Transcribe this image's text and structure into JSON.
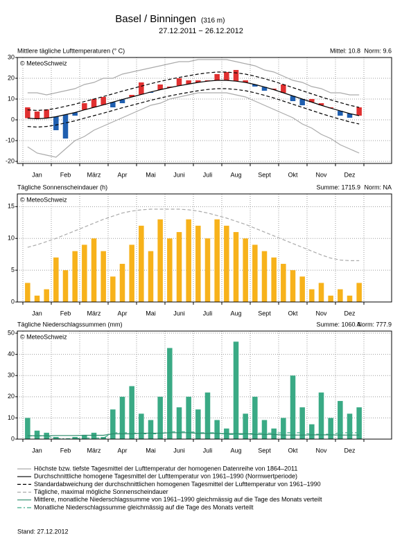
{
  "page": {
    "title": "Basel / Binningen",
    "elevation": "(316 m)",
    "period": "27.12.2011  − 26.12.2012",
    "stand": "Stand: 27.12.2012"
  },
  "chart_data": [
    {
      "type": "bar",
      "title": "Mittlere tägliche Lufttemperaturen (° C)",
      "stats": [
        "Mittel: 10.8",
        "Norm: 9.6"
      ],
      "source": "© MeteoSchweiz",
      "categories": [
        null,
        "Jan",
        null,
        null,
        "Feb",
        null,
        null,
        "März",
        null,
        null,
        "Apr",
        null,
        null,
        "Mai",
        null,
        null,
        "Juni",
        null,
        null,
        "Juli",
        null,
        null,
        "Aug",
        null,
        null,
        "Sept",
        null,
        null,
        "Okt",
        null,
        null,
        "Nov",
        null,
        null,
        "Dez",
        null
      ],
      "ylim": [
        -21,
        30
      ],
      "yticks": [
        -20,
        -10,
        0,
        10,
        20,
        30
      ],
      "grid": true,
      "series": [
        {
          "style": "anomaly",
          "base": 1,
          "color": "#e03030",
          "color_below": "#1f5fb0",
          "values": [
            6,
            4,
            5,
            -5,
            -9,
            2,
            8,
            10,
            11,
            6,
            8,
            12,
            18,
            13,
            17,
            16,
            20,
            19,
            19,
            19,
            22,
            23,
            24,
            19,
            16,
            14,
            15,
            17,
            9,
            7,
            10,
            8,
            6,
            2,
            1,
            6
          ]
        },
        {
          "name": "Durchschnittliche homogene Tagesmittel der Lufttemperatur von 1961–1990 (Normwertperiode)",
          "style": "solid",
          "color": "#000000",
          "values": [
            0.8,
            0.5,
            0.8,
            1.5,
            2.5,
            3.5,
            4.8,
            6,
            7.2,
            8.5,
            9.8,
            11,
            12.2,
            13.4,
            14.5,
            15.5,
            16.4,
            17.2,
            18,
            18.6,
            19,
            19,
            18.6,
            18,
            17,
            15.8,
            14.5,
            13,
            11.5,
            10,
            8.5,
            7,
            5.6,
            4.3,
            3,
            2
          ]
        },
        {
          "name": "Standardabweichung der durchschnittlichen homogenen Tagesmittel der Lufttemperatur von 1961–1990",
          "style": "dashed",
          "color": "#000000",
          "values": [
            4.8,
            4.5,
            4.8,
            5.5,
            6.5,
            7.5,
            8.8,
            10,
            11.2,
            12.5,
            13.8,
            15,
            16.2,
            17.4,
            18.5,
            19.5,
            20.4,
            21.2,
            22,
            22.6,
            23,
            23,
            22.6,
            22,
            21,
            19.8,
            18.5,
            17,
            15.5,
            14,
            12.5,
            11,
            9.6,
            8.3,
            7,
            6
          ],
          "low_values": [
            -3.2,
            -3.5,
            -3.2,
            -2.5,
            -1.5,
            -0.5,
            0.8,
            2,
            3.2,
            4.5,
            5.8,
            7,
            8.2,
            9.4,
            10.5,
            11.5,
            12.4,
            13.2,
            14,
            14.6,
            15,
            15,
            14.6,
            14,
            13,
            11.8,
            10.5,
            9,
            7.5,
            6,
            4.5,
            3,
            1.6,
            0.3,
            -1,
            -2
          ]
        },
        {
          "name": "Höchste bzw. tiefste Tagesmittel der Lufttemperatur der homogenen Datenreihe von 1864–2011",
          "style": "solid",
          "color": "#aaaaaa",
          "values": [
            13,
            13,
            12,
            13,
            14,
            15,
            17,
            18,
            20,
            20,
            22,
            23,
            24,
            25,
            26,
            27,
            28,
            28,
            29,
            29,
            29,
            29,
            28,
            27,
            26,
            24,
            23,
            21,
            19,
            18,
            16,
            15,
            13,
            13,
            12,
            12
          ],
          "low_values": [
            -13,
            -16,
            -17,
            -18,
            -14,
            -10,
            -8,
            -5,
            -3,
            -1,
            1,
            3,
            5,
            7,
            8,
            10,
            11,
            12,
            13,
            13,
            13,
            13,
            12,
            11,
            9,
            7,
            5,
            3,
            1,
            -2,
            -4,
            -7,
            -9,
            -12,
            -14,
            -16
          ]
        }
      ]
    },
    {
      "type": "bar",
      "title": "Tägliche Sonnenscheindauer (h)",
      "stats": [
        "Summe: 1715.9",
        "Norm: NA"
      ],
      "source": "© MeteoSchweiz",
      "categories": [
        null,
        "Jan",
        null,
        null,
        "Feb",
        null,
        null,
        "März",
        null,
        null,
        "Apr",
        null,
        null,
        "Mai",
        null,
        null,
        "Juni",
        null,
        null,
        "Juli",
        null,
        null,
        "Aug",
        null,
        null,
        "Sept",
        null,
        null,
        "Okt",
        null,
        null,
        "Nov",
        null,
        null,
        "Dez",
        null
      ],
      "ylim": [
        0,
        17
      ],
      "yticks": [
        0,
        5,
        10,
        15
      ],
      "grid": true,
      "series": [
        {
          "style": "bars",
          "color": "#f7b21b",
          "values": [
            3,
            1,
            2,
            7,
            5,
            8,
            9,
            10,
            8,
            4,
            6,
            9,
            12,
            8,
            13,
            10,
            11,
            13,
            12,
            10,
            13,
            12,
            11,
            10,
            9,
            8,
            7,
            6,
            5,
            4,
            2,
            3,
            1,
            2,
            1,
            3
          ]
        },
        {
          "name": "Tägliche, maximal mögliche Sonnenscheindauer",
          "style": "dashed",
          "color": "#aaaaaa",
          "values": [
            8.6,
            9,
            9.5,
            10,
            10.6,
            11.2,
            11.8,
            12.4,
            13,
            13.5,
            14,
            14.3,
            14.5,
            14.6,
            14.6,
            14.6,
            14.6,
            14.5,
            14.3,
            14,
            13.6,
            13.2,
            12.7,
            12.2,
            11.6,
            11,
            10.4,
            9.8,
            9.2,
            8.6,
            8,
            7.4,
            6.9,
            6.6,
            6.5,
            6.5
          ]
        }
      ]
    },
    {
      "type": "bar",
      "title": "Tägliche Niederschlagssummen (mm)",
      "stats": [
        "Summe: 1060.4",
        "Norm: 777.9"
      ],
      "source": "© MeteoSchweiz",
      "categories": [
        null,
        "Jan",
        null,
        null,
        "Feb",
        null,
        null,
        "März",
        null,
        null,
        "Apr",
        null,
        null,
        "Mai",
        null,
        null,
        "Juni",
        null,
        null,
        "Juli",
        null,
        null,
        "Aug",
        null,
        null,
        "Sept",
        null,
        null,
        "Okt",
        null,
        null,
        "Nov",
        null,
        null,
        "Dez",
        null
      ],
      "ylim": [
        0,
        51
      ],
      "yticks": [
        0,
        10,
        20,
        30,
        40,
        50
      ],
      "grid": true,
      "series": [
        {
          "style": "bars",
          "color": "#3aaa85",
          "values": [
            10,
            4,
            3,
            1,
            0,
            1,
            2,
            3,
            1,
            14,
            20,
            25,
            12,
            9,
            20,
            43,
            15,
            20,
            14,
            22,
            9,
            5,
            46,
            12,
            20,
            9,
            5,
            10,
            30,
            15,
            7,
            22,
            10,
            18,
            12,
            15
          ]
        },
        {
          "name": "Mittlere, monatliche Niederschlagssumme von 1961–1990 gleichmässig auf die Tage des Monats verteilt",
          "style": "solid",
          "color": "#2a8a6a",
          "values": [
            1.6,
            1.6,
            1.6,
            1.7,
            1.7,
            1.7,
            1.8,
            1.8,
            1.8,
            2.5,
            2.5,
            2.5,
            2.8,
            2.8,
            2.8,
            3.0,
            3.0,
            3.0,
            2.7,
            2.7,
            2.7,
            2.6,
            2.6,
            2.6,
            2.2,
            2.2,
            2.2,
            1.9,
            1.9,
            1.9,
            2.0,
            2.0,
            2.0,
            1.9,
            1.9,
            1.9
          ]
        },
        {
          "name": "Monatliche Niederschlagssumme gleichmässig auf die Tage des Monats verteilt",
          "style": "dashdot",
          "color": "#3aaa85",
          "values": [
            1.5,
            1.5,
            1.5,
            0.2,
            0.2,
            0.2,
            0.5,
            0.5,
            0.5,
            3.0,
            3.0,
            3.0,
            2.5,
            2.5,
            2.5,
            3.5,
            3.5,
            3.5,
            3.0,
            3.0,
            3.0,
            2.2,
            2.2,
            2.2,
            2.8,
            2.8,
            2.8,
            3.0,
            3.0,
            3.0,
            2.3,
            2.3,
            2.3,
            3.0,
            3.0,
            3.0
          ]
        }
      ]
    }
  ]
}
